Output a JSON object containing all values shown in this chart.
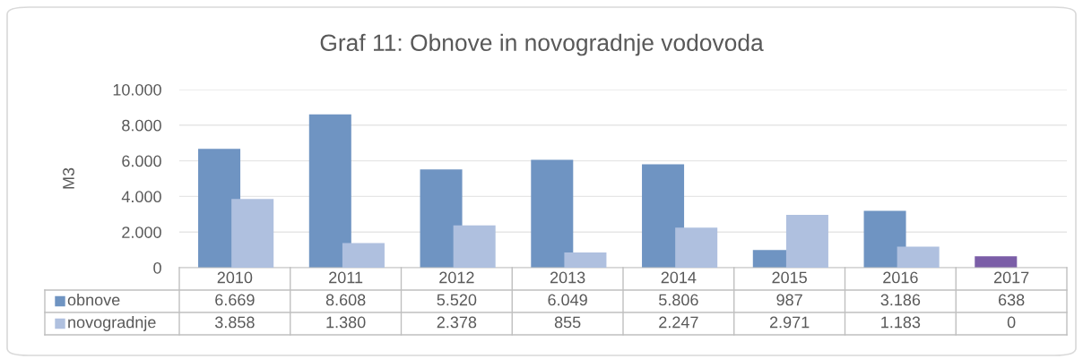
{
  "chart_data": {
    "type": "bar",
    "title": "Graf 11: Obnove in novogradnje vodovoda",
    "ylabel": "M3",
    "categories": [
      "2010",
      "2011",
      "2012",
      "2013",
      "2014",
      "2015",
      "2016",
      "2017"
    ],
    "series": [
      {
        "name": "obnove",
        "color": "#6f94c2",
        "colors": [
          "#6f94c2",
          "#6f94c2",
          "#6f94c2",
          "#6f94c2",
          "#6f94c2",
          "#6f94c2",
          "#6f94c2",
          "#7b5ea7"
        ],
        "values": [
          6669,
          8608,
          5520,
          6049,
          5806,
          987,
          3186,
          638
        ],
        "value_labels": [
          "6.669",
          "8.608",
          "5.520",
          "6.049",
          "5.806",
          "987",
          "3.186",
          "638"
        ]
      },
      {
        "name": "novogradnje",
        "color": "#afc0df",
        "values": [
          3858,
          1380,
          2378,
          855,
          2247,
          2971,
          1183,
          0
        ],
        "value_labels": [
          "3.858",
          "1.380",
          "2.378",
          "855",
          "2.247",
          "2.971",
          "1.183",
          "0"
        ]
      }
    ],
    "ylim": [
      0,
      10000
    ],
    "yticks": [
      0,
      {
        "value": 2000,
        "label": "2.000"
      },
      {
        "value": 4000,
        "label": "4.000"
      },
      {
        "value": 6000,
        "label": "6.000"
      },
      {
        "value": 8000,
        "label": "8.000"
      },
      {
        "value": 10000,
        "label": "10.000"
      }
    ],
    "grid": "y",
    "legend": "bottom"
  }
}
